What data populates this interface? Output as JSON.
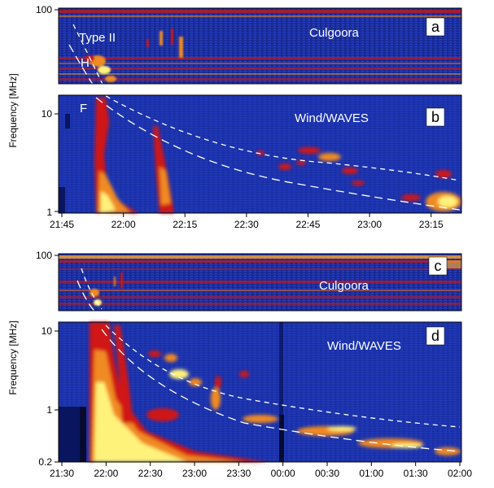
{
  "chart_data": [
    {
      "type": "heatmap",
      "panel": "top",
      "xlabel": "",
      "ylabel": "Frequency [MHz]",
      "x_ticks": [
        "21:45",
        "22:00",
        "22:15",
        "22:30",
        "22:45",
        "23:00",
        "23:15"
      ],
      "x_tick_minutes": [
        0,
        15,
        30,
        45,
        60,
        75,
        90
      ],
      "x_range_minutes": [
        0,
        97
      ],
      "subpanels": [
        {
          "letter": "a",
          "instrument": "Culgoora",
          "y_ticks": [
            "100"
          ],
          "y_tick_values": [
            100
          ],
          "ylim": [
            18,
            100
          ],
          "annotations": [
            "Type II",
            "H"
          ]
        },
        {
          "letter": "b",
          "instrument": "Wind/WAVES",
          "y_ticks": [
            "10",
            "1"
          ],
          "y_tick_values": [
            10,
            1
          ],
          "ylim": [
            1,
            14
          ],
          "annotations": [
            "F"
          ]
        }
      ]
    },
    {
      "type": "heatmap",
      "panel": "bottom",
      "xlabel": "",
      "ylabel": "Frequency [MHz]",
      "x_ticks": [
        "21:30",
        "22:00",
        "22:30",
        "23:00",
        "23:30",
        "00:00",
        "00:30",
        "01:00",
        "01:30",
        "02:00"
      ],
      "x_tick_minutes": [
        0,
        30,
        60,
        90,
        120,
        150,
        180,
        210,
        240,
        270
      ],
      "x_range_minutes": [
        0,
        270
      ],
      "subpanels": [
        {
          "letter": "c",
          "instrument": "Culgoora",
          "y_ticks": [
            "100"
          ],
          "y_tick_values": [
            100
          ],
          "ylim": [
            18,
            100
          ]
        },
        {
          "letter": "d",
          "instrument": "Wind/WAVES",
          "y_ticks": [
            "10",
            "1",
            "0.2"
          ],
          "y_tick_values": [
            10,
            1,
            0.2
          ],
          "ylim": [
            0.2,
            14
          ]
        }
      ]
    }
  ],
  "colors": {
    "background": "#1a2fa0",
    "dark": "#0a1560",
    "red": "#d01818",
    "orange": "#f08a20",
    "yellow": "#fff27a",
    "guide": "#ffffff"
  }
}
